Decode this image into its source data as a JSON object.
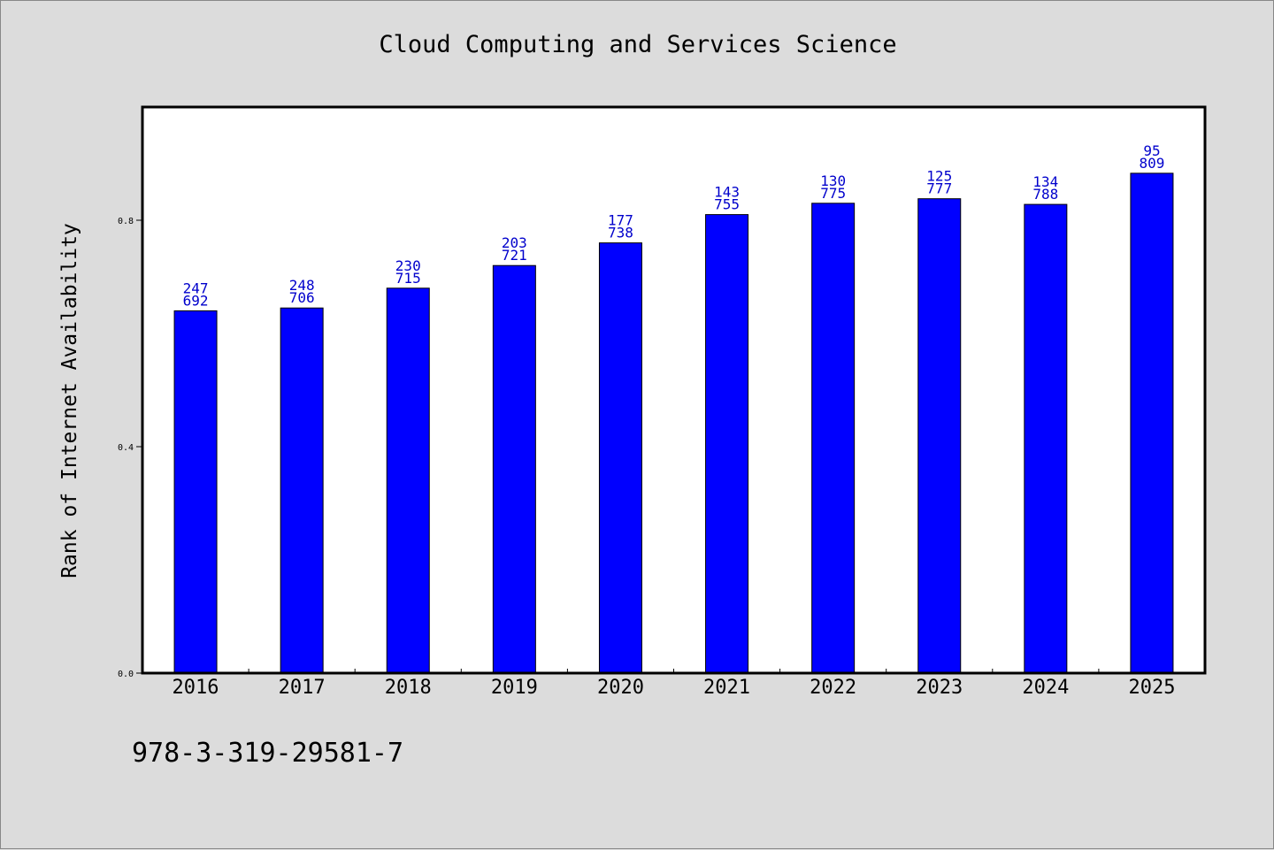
{
  "title": "Cloud Computing and Services Science",
  "footer": {
    "code": "978-3-319-29581-7"
  },
  "chart_data": {
    "type": "bar",
    "title": "Cloud Computing and Services Science",
    "xlabel": "",
    "ylabel": "Rank of Internet Availability",
    "categories": [
      "2016",
      "2017",
      "2018",
      "2019",
      "2020",
      "2021",
      "2022",
      "2023",
      "2024",
      "2025"
    ],
    "values": [
      0.64,
      0.645,
      0.68,
      0.72,
      0.76,
      0.81,
      0.83,
      0.838,
      0.828,
      0.883
    ],
    "annotations_top": [
      "247",
      "248",
      "230",
      "203",
      "177",
      "143",
      "130",
      "125",
      "134",
      "95"
    ],
    "annotations_bottom": [
      "692",
      "706",
      "715",
      "721",
      "738",
      "755",
      "775",
      "777",
      "788",
      "809"
    ],
    "yticks": [
      0.0,
      0.4,
      0.8
    ],
    "ytick_labels": [
      "0.0",
      "0.4",
      "0.8"
    ],
    "ylim": [
      0.0,
      1.0
    ],
    "grid": false,
    "bar_color": "#0000ff",
    "label_color": "#0000cc"
  }
}
